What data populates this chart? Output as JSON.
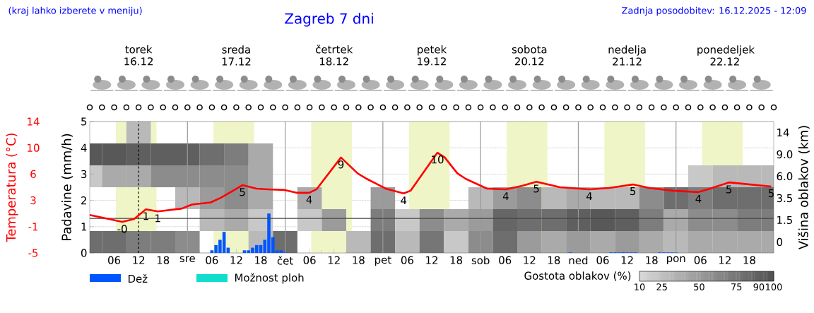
{
  "chart_data": [
    {
      "type": "line",
      "title": "Zagreb 7 dni",
      "annotations": [
        "(kraj lahko izberete v meniju)",
        "Zadnja posodobitev: 16.12.2025 - 12:09",
        {
          "text": "-0",
          "x": "2025-12-16T08:00",
          "y": 1.18
        },
        {
          "text": "1",
          "x": "2025-12-16T13:48",
          "y": 1.66
        },
        {
          "text": "1",
          "x": "2025-12-16T16:42",
          "y": 1.58
        },
        {
          "text": "5",
          "x": "2025-12-17T13:30",
          "y": 2.58
        },
        {
          "text": "4",
          "x": "2025-12-18T05:54",
          "y": 2.29
        },
        {
          "text": "9",
          "x": "2025-12-18T13:42",
          "y": 3.63
        },
        {
          "text": "4",
          "x": "2025-12-19T05:06",
          "y": 2.26
        },
        {
          "text": "10",
          "x": "2025-12-19T13:24",
          "y": 3.82
        },
        {
          "text": "4",
          "x": "2025-12-20T06:12",
          "y": 2.42
        },
        {
          "text": "5",
          "x": "2025-12-20T13:42",
          "y": 2.71
        },
        {
          "text": "4",
          "x": "2025-12-21T02:42",
          "y": 2.42
        },
        {
          "text": "5",
          "x": "2025-12-21T13:24",
          "y": 2.61
        },
        {
          "text": "4",
          "x": "2025-12-22T05:30",
          "y": 2.32
        },
        {
          "text": "5",
          "x": "2025-12-22T13:00",
          "y": 2.68
        },
        {
          "text": "5",
          "x": "2025-12-22T23:24",
          "y": 2.53
        }
      ],
      "ylabel": "Padavine (mm/h)",
      "y2label": "Temperatura (°C)",
      "xlim": [
        "2025-12-16T00:00",
        "2025-12-23T00:00"
      ],
      "xticks": [
        {
          "value": "2025-12-16T12:00",
          "label": "torek 16.12"
        },
        {
          "value": "2025-12-17T12:00",
          "label": "sreda 17.12"
        },
        {
          "value": "2025-12-18T12:00",
          "label": "četrtek 18.12"
        },
        {
          "value": "2025-12-19T12:00",
          "label": "petek 19.12"
        },
        {
          "value": "2025-12-20T12:00",
          "label": "sobota 20.12"
        },
        {
          "value": "2025-12-21T12:00",
          "label": "nedelja 21.12"
        },
        {
          "value": "2025-12-22T12:00",
          "label": "ponedeljek 22.12"
        }
      ],
      "ylim": [
        0,
        5
      ],
      "yticks": [
        0,
        1,
        2,
        3,
        4,
        5
      ],
      "y2lim": [
        -5,
        14
      ],
      "y2ticks": [
        -5,
        {
          "value": -1.2,
          "label": "-1"
        },
        {
          "value": 2.6,
          "label": "3"
        },
        {
          "value": 6.4,
          "label": "6"
        },
        {
          "value": 10.2,
          "label": "10"
        },
        14
      ],
      "grid": "y",
      "legend": "bottom",
      "ref_lines": [
        {
          "axis": "x",
          "value": "2025-12-16T12:00",
          "line_style": "dashed",
          "color": "#000000"
        },
        {
          "axis": "y2",
          "value": 0,
          "color": "#444444"
        },
        {
          "axis": "x",
          "value": "2025-12-17T00:00",
          "color": "#999999"
        },
        {
          "axis": "x",
          "value": "2025-12-18T00:00",
          "color": "#999999"
        },
        {
          "axis": "x",
          "value": "2025-12-19T00:00",
          "color": "#999999"
        },
        {
          "axis": "x",
          "value": "2025-12-20T00:00",
          "color": "#999999"
        },
        {
          "axis": "x",
          "value": "2025-12-21T00:00",
          "color": "#999999"
        },
        {
          "axis": "x",
          "value": "2025-12-22T00:00",
          "color": "#999999"
        }
      ],
      "bands": [
        {
          "axis": "x",
          "from": "2025-12-16T06:24",
          "to": "2025-12-16T16:24",
          "color": "#f0f5c8"
        },
        {
          "axis": "x",
          "from": "2025-12-17T06:24",
          "to": "2025-12-17T16:24",
          "color": "#f0f5c8"
        },
        {
          "axis": "x",
          "from": "2025-12-18T06:24",
          "to": "2025-12-18T16:24",
          "color": "#f0f5c8"
        },
        {
          "axis": "x",
          "from": "2025-12-19T06:24",
          "to": "2025-12-19T16:24",
          "color": "#f0f5c8"
        },
        {
          "axis": "x",
          "from": "2025-12-20T06:24",
          "to": "2025-12-20T16:24",
          "color": "#f0f5c8"
        },
        {
          "axis": "x",
          "from": "2025-12-21T06:24",
          "to": "2025-12-21T16:24",
          "color": "#f0f5c8"
        },
        {
          "axis": "x",
          "from": "2025-12-22T06:24",
          "to": "2025-12-22T16:24",
          "color": "#f0f5c8"
        }
      ],
      "series": [
        {
          "axis": "y2",
          "color": "#ff0000",
          "x": [
            "2025-12-16T00:00",
            "2025-12-16T08:00",
            "2025-12-16T10:54",
            "2025-12-16T13:48",
            "2025-12-16T16:42",
            "2025-12-16T22:30",
            "2025-12-17T01:06",
            "2025-12-17T05:42",
            "2025-12-17T08:18",
            "2025-12-17T13:30",
            "2025-12-17T17:00",
            "2025-12-17T19:48",
            "2025-12-17T23:54",
            "2025-12-18T02:48",
            "2025-12-18T05:54",
            "2025-12-18T07:42",
            "2025-12-18T13:42",
            "2025-12-18T17:48",
            "2025-12-18T20:06",
            "2025-12-19T00:42",
            "2025-12-19T05:06",
            "2025-12-19T06:48",
            "2025-12-19T13:24",
            "2025-12-19T15:12",
            "2025-12-19T18:18",
            "2025-12-19T20:24",
            "2025-12-20T01:36",
            "2025-12-20T06:12",
            "2025-12-20T10:12",
            "2025-12-20T13:42",
            "2025-12-20T19:30",
            "2025-12-21T02:42",
            "2025-12-21T07:36",
            "2025-12-21T13:24",
            "2025-12-21T17:24",
            "2025-12-21T23:12",
            "2025-12-22T05:30",
            "2025-12-22T07:48",
            "2025-12-22T13:00",
            "2025-12-22T16:30",
            "2025-12-22T23:24"
          ],
          "values": [
            0.5,
            -0.5,
            -0.1,
            1.3,
            1.0,
            1.4,
            2.0,
            2.3,
            3.0,
            4.8,
            4.3,
            4.2,
            4.1,
            3.7,
            3.7,
            4.2,
            8.8,
            6.5,
            5.7,
            4.3,
            3.6,
            4.0,
            9.5,
            8.8,
            6.5,
            5.7,
            4.3,
            4.2,
            4.7,
            5.3,
            4.5,
            4.2,
            4.4,
            4.9,
            4.4,
            4.0,
            3.8,
            4.2,
            5.2,
            5.0,
            4.6
          ]
        },
        {
          "type": "bar",
          "name": "Dež",
          "color": "#0055ff",
          "x": [
            "2025-12-17T06:00",
            "2025-12-17T07:00",
            "2025-12-17T08:00",
            "2025-12-17T09:00",
            "2025-12-17T10:00",
            "2025-12-17T14:00",
            "2025-12-17T15:00",
            "2025-12-17T16:00",
            "2025-12-17T17:00",
            "2025-12-17T18:00",
            "2025-12-17T19:00",
            "2025-12-17T20:00",
            "2025-12-17T21:00",
            "2025-12-17T22:00",
            "2025-12-17T23:00",
            "2025-12-18T00:00",
            "2025-12-20T22:00",
            "2025-12-21T08:00",
            "2025-12-21T09:00",
            "2025-12-21T10:00",
            "2025-12-21T11:00",
            "2025-12-21T12:00",
            "2025-12-21T13:00",
            "2025-12-21T14:00",
            "2025-12-21T20:00",
            "2025-12-21T21:00",
            "2025-12-21T22:00",
            "2025-12-21T23:00",
            "2025-12-22T00:00"
          ],
          "values": [
            0.1,
            0.3,
            0.5,
            0.8,
            0.2,
            0.1,
            0.1,
            0.2,
            0.3,
            0.3,
            0.5,
            1.5,
            0.6,
            0.1,
            0.1,
            0.04,
            0.02,
            0.02,
            0.02,
            0.02,
            0.03,
            0.02,
            0.02,
            0.02,
            0.02,
            0.02,
            0.02,
            0.02,
            0.02
          ]
        },
        {
          "type": "bar",
          "name": "Možnost ploh",
          "color": "#11ddcc"
        }
      ]
    },
    {
      "type": "heatmap",
      "ylabel": "Višina oblakov (km)",
      "clabel": "Gostota oblakov (%)",
      "categories": [
        null,
        "06",
        "12",
        "18",
        "sre",
        "06",
        "12",
        "18",
        "čet",
        "06",
        "12",
        "18",
        "pet",
        "06",
        "12",
        "18",
        "sob",
        "06",
        "12",
        "18",
        "ned",
        "06",
        "12",
        "18",
        "pon",
        "06",
        "12",
        "18",
        null
      ],
      "y_categories": [
        "14",
        "9.0",
        "6.0",
        "3.5",
        "1.5",
        "0"
      ],
      "clim": [
        10,
        100
      ],
      "cticks": [
        10,
        25,
        50,
        75,
        90,
        100
      ],
      "cells": [
        [
          null,
          null,
          30,
          null,
          null,
          null,
          null,
          null,
          null,
          null,
          null,
          null,
          null,
          null,
          null,
          null,
          null,
          null,
          null,
          null,
          null,
          null,
          null,
          null,
          null,
          null,
          null,
          null,
          null
        ],
        [
          95,
          95,
          90,
          90,
          90,
          80,
          70,
          40,
          null,
          null,
          null,
          null,
          null,
          null,
          null,
          null,
          null,
          null,
          null,
          null,
          null,
          null,
          null,
          null,
          null,
          null,
          null,
          null,
          null
        ],
        [
          20,
          40,
          40,
          60,
          60,
          60,
          60,
          40,
          null,
          null,
          null,
          null,
          null,
          null,
          null,
          null,
          null,
          null,
          null,
          null,
          null,
          null,
          null,
          null,
          null,
          20,
          30,
          30,
          30
        ],
        [
          null,
          null,
          null,
          null,
          30,
          50,
          60,
          40,
          null,
          40,
          null,
          null,
          50,
          null,
          null,
          null,
          30,
          50,
          60,
          30,
          40,
          30,
          30,
          60,
          80,
          70,
          80,
          80,
          80
        ],
        [
          null,
          null,
          null,
          null,
          null,
          30,
          40,
          20,
          null,
          20,
          50,
          null,
          70,
          20,
          60,
          40,
          50,
          85,
          80,
          80,
          90,
          95,
          90,
          70,
          40,
          60,
          60,
          70,
          70
        ],
        [
          80,
          80,
          70,
          70,
          60,
          null,
          null,
          30,
          80,
          null,
          null,
          30,
          80,
          30,
          75,
          20,
          60,
          80,
          50,
          40,
          50,
          40,
          50,
          40,
          30,
          40,
          40,
          40,
          40
        ]
      ]
    }
  ]
}
